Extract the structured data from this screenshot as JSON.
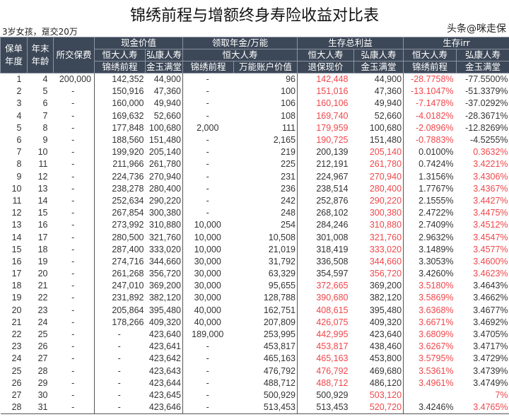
{
  "title": "锦绣前程与增额终身寿险收益对比表",
  "subtitle": "3岁女孩，趸交20万",
  "headers": {
    "policy_year": "保单年度",
    "age": "年末年龄",
    "premium": "所交保费",
    "cash_value": "现金价值",
    "annuity": "领取年金/万能",
    "total_benefit": "生存总利益",
    "irr": "生存irr",
    "hengda": "恒大人寿",
    "hongkang": "弘康人寿",
    "jinxiu": "锦绣前程",
    "jinyu": "金玉满堂",
    "wanneng": "万能账户价值",
    "surrender": "退保现价"
  },
  "rows": [
    [
      "1",
      "4",
      "200,000",
      "142,352",
      "44,900",
      "-",
      "96",
      "142,448",
      "44,900",
      "-28.7758%",
      "-77.5500%"
    ],
    [
      "2",
      "5",
      "-",
      "150,916",
      "47,360",
      "-",
      "100",
      "151,016",
      "47,360",
      "-13.1047%",
      "-51.3379%"
    ],
    [
      "3",
      "6",
      "-",
      "160,000",
      "49,940",
      "-",
      "106",
      "160,106",
      "49,940",
      "-7.1478%",
      "-37.0292%"
    ],
    [
      "4",
      "7",
      "-",
      "169,632",
      "52,660",
      "-",
      "108",
      "169,740",
      "52,660",
      "-4.0182%",
      "-28.3671%"
    ],
    [
      "5",
      "8",
      "-",
      "177,848",
      "100,680",
      "2,000",
      "111",
      "179,959",
      "100,680",
      "-2.0896%",
      "-12.8269%"
    ],
    [
      "6",
      "9",
      "-",
      "188,560",
      "151,480",
      "-",
      "2,165",
      "190,725",
      "151,480",
      "-0.7883%",
      "-4.5255%"
    ],
    [
      "7",
      "10",
      "-",
      "199,920",
      "205,140",
      "-",
      "219",
      "200,139",
      "205,140",
      "0.0100%",
      "0.3632%"
    ],
    [
      "8",
      "11",
      "-",
      "211,966",
      "261,780",
      "-",
      "225",
      "212,191",
      "261,780",
      "0.7424%",
      "3.4221%"
    ],
    [
      "9",
      "12",
      "-",
      "224,736",
      "270,940",
      "-",
      "231",
      "224,967",
      "270,940",
      "1.3156%",
      "3.4306%"
    ],
    [
      "10",
      "13",
      "-",
      "238,278",
      "280,400",
      "-",
      "236",
      "238,514",
      "280,400",
      "1.7767%",
      "3.4367%"
    ],
    [
      "11",
      "14",
      "-",
      "252,634",
      "290,220",
      "-",
      "242",
      "252,876",
      "290,220",
      "2.1555%",
      "3.4427%"
    ],
    [
      "12",
      "15",
      "-",
      "267,854",
      "300,380",
      "-",
      "248",
      "268,102",
      "300,380",
      "2.4722%",
      "3.4475%"
    ],
    [
      "13",
      "16",
      "-",
      "273,992",
      "310,880",
      "10,000",
      "254",
      "284,246",
      "310,880",
      "2.7409%",
      "3.4512%"
    ],
    [
      "14",
      "17",
      "-",
      "280,500",
      "321,760",
      "10,000",
      "10,508",
      "301,008",
      "321,760",
      "2.9632%",
      "3.4547%"
    ],
    [
      "15",
      "18",
      "-",
      "287,400",
      "333,020",
      "10,000",
      "21,019",
      "318,419",
      "333,020",
      "3.1489%",
      "3.4577%"
    ],
    [
      "16",
      "19",
      "-",
      "274,716",
      "344,660",
      "30,000",
      "31,792",
      "336,508",
      "344,660",
      "3.3053%",
      "3.4600%"
    ],
    [
      "17",
      "20",
      "-",
      "261,268",
      "356,720",
      "30,000",
      "63,329",
      "354,597",
      "356,720",
      "3.4260%",
      "3.4623%"
    ],
    [
      "18",
      "21",
      "-",
      "247,010",
      "369,200",
      "30,000",
      "95,655",
      "372,665",
      "369,200",
      "3.5180%",
      "3.4643%"
    ],
    [
      "19",
      "22",
      "-",
      "231,892",
      "382,120",
      "30,000",
      "128,788",
      "390,680",
      "382,120",
      "3.5869%",
      "3.4662%"
    ],
    [
      "20",
      "23",
      "-",
      "205,864",
      "395,480",
      "40,000",
      "162,751",
      "408,615",
      "395,480",
      "3.6368%",
      "3.4677%"
    ],
    [
      "21",
      "24",
      "-",
      "178,266",
      "409,320",
      "40,000",
      "207,809",
      "426,075",
      "409,320",
      "3.6671%",
      "3.4692%"
    ],
    [
      "22",
      "25",
      "-",
      "-",
      "423,640",
      "189,000",
      "253,995",
      "442,995",
      "423,640",
      "3.6809%",
      "3.4705%"
    ],
    [
      "23",
      "26",
      "-",
      "-",
      "423,641",
      "-",
      "453,817",
      "453,817",
      "438,460",
      "3.6267%",
      "3.4717%"
    ],
    [
      "24",
      "27",
      "-",
      "-",
      "423,642",
      "-",
      "465,163",
      "465,163",
      "453,800",
      "3.5795%",
      "3.4729%"
    ],
    [
      "25",
      "28",
      "-",
      "-",
      "423,643",
      "-",
      "476,792",
      "476,792",
      "469,680",
      "3.5361%",
      "3.4739%"
    ],
    [
      "26",
      "29",
      "-",
      "-",
      "423,644",
      "-",
      "488,712",
      "488,712",
      "486,120",
      "3.4961%",
      "3.4749%"
    ],
    [
      "27",
      "30",
      "-",
      "-",
      "423,645",
      "-",
      "500,929",
      "500,929",
      "503,120",
      "",
      "7%"
    ],
    [
      "28",
      "31",
      "-",
      "-",
      "423,646",
      "-",
      "513,453",
      "513,453",
      "520,720",
      "3.4246%",
      "3.4765%"
    ]
  ],
  "red_side": [
    "H",
    "H",
    "H",
    "H",
    "H",
    "H",
    "K",
    "K",
    "K",
    "K",
    "K",
    "K",
    "K",
    "K",
    "K",
    "K",
    "K",
    "H",
    "H",
    "H",
    "H",
    "H",
    "H",
    "H",
    "H",
    "H",
    "K",
    "K"
  ],
  "colors": {
    "header_bg": "#3c4757",
    "highlight": "#f0464a"
  },
  "watermark": "头条@咪走保"
}
